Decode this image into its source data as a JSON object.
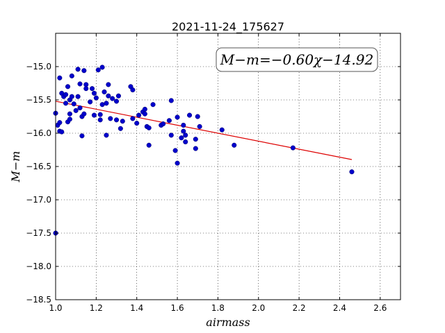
{
  "chart_data": {
    "type": "scatter",
    "title": "2021-11-24_175627",
    "xlabel": "airmass",
    "ylabel": "M−m",
    "annotation": "M−m=−0.60χ−14.92",
    "xlim": [
      1.0,
      2.7
    ],
    "ylim": [
      -18.5,
      -14.5
    ],
    "grid": true,
    "x_ticks": [
      1.0,
      1.2,
      1.4,
      1.6,
      1.8,
      2.0,
      2.2,
      2.4,
      2.6
    ],
    "y_ticks": [
      -15.0,
      -15.5,
      -16.0,
      -16.5,
      -17.0,
      -17.5,
      -18.0,
      -18.5
    ],
    "x_tick_labels": [
      "1.0",
      "1.2",
      "1.4",
      "1.6",
      "1.8",
      "2.0",
      "2.2",
      "2.4",
      "2.6"
    ],
    "y_tick_labels": [
      "−15.0",
      "−15.5",
      "−16.0",
      "−16.5",
      "−17.0",
      "−17.5",
      "−18.0",
      "−18.5"
    ],
    "point_color": "#0000cc",
    "fit_color": "#dd0000",
    "fit": {
      "slope": -0.6,
      "intercept": -14.92,
      "x_range": [
        1.0,
        2.46
      ]
    },
    "points": [
      [
        1.0,
        -15.7
      ],
      [
        1.0,
        -17.5
      ],
      [
        1.01,
        -15.88
      ],
      [
        1.02,
        -15.97
      ],
      [
        1.02,
        -15.17
      ],
      [
        1.03,
        -15.4
      ],
      [
        1.02,
        -15.84
      ],
      [
        1.03,
        -15.98
      ],
      [
        1.04,
        -15.45
      ],
      [
        1.05,
        -15.42
      ],
      [
        1.05,
        -15.55
      ],
      [
        1.06,
        -15.3
      ],
      [
        1.06,
        -15.83
      ],
      [
        1.07,
        -15.79
      ],
      [
        1.07,
        -15.71
      ],
      [
        1.07,
        -15.5
      ],
      [
        1.08,
        -15.45
      ],
      [
        1.08,
        -15.14
      ],
      [
        1.09,
        -15.56
      ],
      [
        1.1,
        -15.66
      ],
      [
        1.11,
        -15.04
      ],
      [
        1.11,
        -15.45
      ],
      [
        1.12,
        -15.62
      ],
      [
        1.12,
        -15.26
      ],
      [
        1.13,
        -16.04
      ],
      [
        1.13,
        -15.75
      ],
      [
        1.14,
        -15.06
      ],
      [
        1.14,
        -15.71
      ],
      [
        1.15,
        -15.27
      ],
      [
        1.15,
        -15.33
      ],
      [
        1.17,
        -15.53
      ],
      [
        1.18,
        -15.33
      ],
      [
        1.19,
        -15.4
      ],
      [
        1.19,
        -15.73
      ],
      [
        1.2,
        -15.47
      ],
      [
        1.21,
        -15.05
      ],
      [
        1.22,
        -15.8
      ],
      [
        1.22,
        -15.72
      ],
      [
        1.23,
        -15.01
      ],
      [
        1.23,
        -15.57
      ],
      [
        1.24,
        -15.38
      ],
      [
        1.25,
        -15.55
      ],
      [
        1.25,
        -16.03
      ],
      [
        1.26,
        -15.27
      ],
      [
        1.26,
        -15.44
      ],
      [
        1.27,
        -15.78
      ],
      [
        1.28,
        -15.48
      ],
      [
        1.3,
        -15.8
      ],
      [
        1.3,
        -15.52
      ],
      [
        1.31,
        -15.44
      ],
      [
        1.32,
        -15.93
      ],
      [
        1.33,
        -15.82
      ],
      [
        1.37,
        -15.3
      ],
      [
        1.38,
        -15.35
      ],
      [
        1.38,
        -15.78
      ],
      [
        1.4,
        -15.85
      ],
      [
        1.41,
        -15.73
      ],
      [
        1.43,
        -15.68
      ],
      [
        1.44,
        -15.64
      ],
      [
        1.44,
        -15.71
      ],
      [
        1.45,
        -15.9
      ],
      [
        1.46,
        -16.18
      ],
      [
        1.46,
        -15.92
      ],
      [
        1.48,
        -15.57
      ],
      [
        1.52,
        -15.88
      ],
      [
        1.53,
        -15.86
      ],
      [
        1.56,
        -15.81
      ],
      [
        1.57,
        -15.51
      ],
      [
        1.57,
        -16.03
      ],
      [
        1.59,
        -16.26
      ],
      [
        1.6,
        -15.76
      ],
      [
        1.6,
        -16.45
      ],
      [
        1.62,
        -16.07
      ],
      [
        1.63,
        -15.88
      ],
      [
        1.63,
        -15.97
      ],
      [
        1.64,
        -16.03
      ],
      [
        1.64,
        -16.13
      ],
      [
        1.66,
        -15.73
      ],
      [
        1.69,
        -16.09
      ],
      [
        1.69,
        -16.23
      ],
      [
        1.7,
        -15.75
      ],
      [
        1.71,
        -15.9
      ],
      [
        1.82,
        -15.95
      ],
      [
        1.88,
        -16.18
      ],
      [
        2.17,
        -16.22
      ],
      [
        2.46,
        -16.58
      ]
    ]
  }
}
